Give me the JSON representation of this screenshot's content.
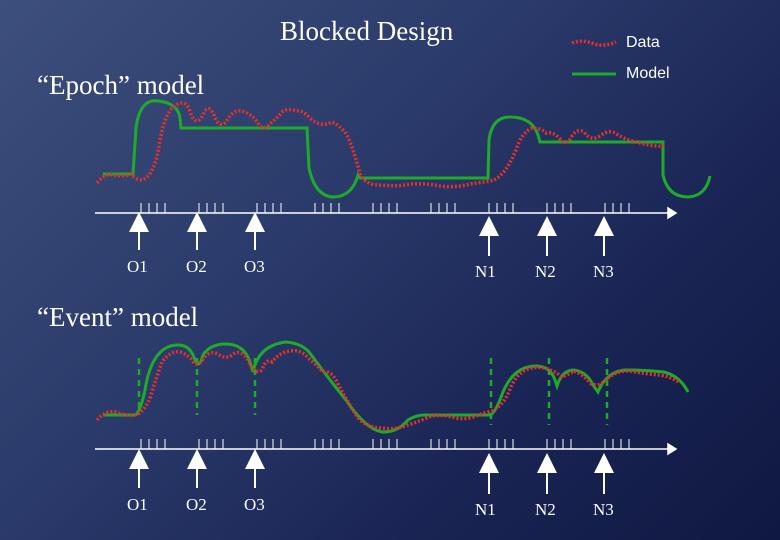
{
  "slide": {
    "title": "Blocked Design",
    "sections": {
      "epoch": "“Epoch” model",
      "event": "“Event” model"
    }
  },
  "legend": {
    "data_label": "Data",
    "model_label": "Model",
    "data_color": "#e8302a",
    "model_color": "#1faa2a"
  },
  "epoch_labels": [
    "O1",
    "O2",
    "O3",
    "N1",
    "N2",
    "N3"
  ],
  "event_labels": [
    "O1",
    "O2",
    "O3",
    "N1",
    "N2",
    "N3"
  ]
}
